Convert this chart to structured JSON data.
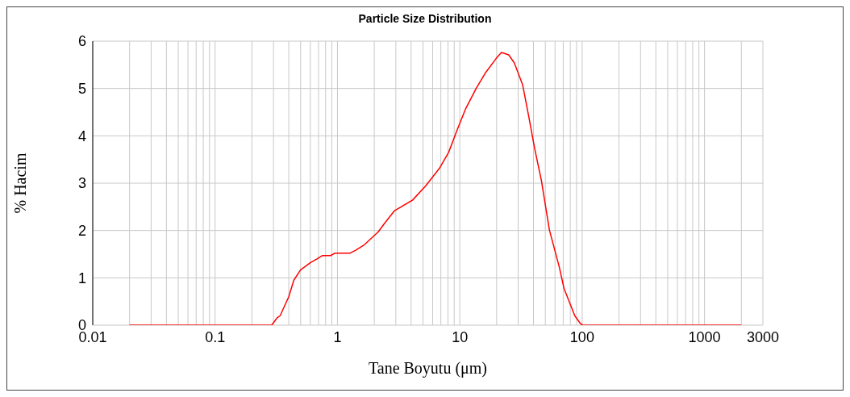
{
  "chart_data": {
    "type": "line",
    "title": "Particle Size Distribution",
    "xlabel": "Tane Boyutu (μm)",
    "ylabel": "% Hacim",
    "log": "x",
    "grid": true,
    "legend": false,
    "marker": "none",
    "line_style": "solid",
    "xlim": [
      0.01,
      3000
    ],
    "xticks": [
      0.01,
      {
        "value": 0.02,
        "label": null
      },
      {
        "value": 0.03,
        "label": null
      },
      {
        "value": 0.04,
        "label": null
      },
      {
        "value": 0.05,
        "label": null
      },
      {
        "value": 0.06,
        "label": null
      },
      {
        "value": 0.07,
        "label": null
      },
      {
        "value": 0.08,
        "label": null
      },
      {
        "value": 0.09,
        "label": null
      },
      0.1,
      {
        "value": 0.2,
        "label": null
      },
      {
        "value": 0.3,
        "label": null
      },
      {
        "value": 0.4,
        "label": null
      },
      {
        "value": 0.5,
        "label": null
      },
      {
        "value": 0.6,
        "label": null
      },
      {
        "value": 0.7,
        "label": null
      },
      {
        "value": 0.8,
        "label": null
      },
      {
        "value": 0.9,
        "label": null
      },
      1,
      {
        "value": 2,
        "label": null
      },
      {
        "value": 3,
        "label": null
      },
      {
        "value": 4,
        "label": null
      },
      {
        "value": 5,
        "label": null
      },
      {
        "value": 6,
        "label": null
      },
      {
        "value": 7,
        "label": null
      },
      {
        "value": 8,
        "label": null
      },
      {
        "value": 9,
        "label": null
      },
      10,
      {
        "value": 20,
        "label": null
      },
      {
        "value": 30,
        "label": null
      },
      {
        "value": 40,
        "label": null
      },
      {
        "value": 50,
        "label": null
      },
      {
        "value": 60,
        "label": null
      },
      {
        "value": 70,
        "label": null
      },
      {
        "value": 80,
        "label": null
      },
      {
        "value": 90,
        "label": null
      },
      100,
      {
        "value": 200,
        "label": null
      },
      {
        "value": 300,
        "label": null
      },
      {
        "value": 400,
        "label": null
      },
      {
        "value": 500,
        "label": null
      },
      {
        "value": 600,
        "label": null
      },
      {
        "value": 700,
        "label": null
      },
      {
        "value": 800,
        "label": null
      },
      {
        "value": 900,
        "label": null
      },
      1000,
      {
        "value": 2000,
        "label": null
      },
      3000
    ],
    "ylim": [
      0,
      6
    ],
    "yticks": [
      0,
      1,
      2,
      3,
      4,
      5,
      6
    ],
    "series": [
      {
        "color": "#ff0000",
        "x": [
          0.02,
          0.1,
          0.29,
          0.32,
          0.34,
          0.4,
          0.44,
          0.5,
          0.6,
          0.68,
          0.75,
          0.88,
          0.95,
          1.26,
          1.4,
          1.66,
          1.9,
          2.15,
          2.44,
          2.93,
          4.1,
          5.25,
          6.8,
          8.1,
          9.6,
          11.2,
          13.6,
          16.3,
          19.9,
          21.9,
          25.1,
          27.9,
          32.6,
          36.6,
          40.9,
          46.4,
          54,
          65,
          71,
          80,
          87,
          97,
          101,
          1000,
          2000
        ],
        "values": [
          0,
          0,
          0,
          0.15,
          0.2,
          0.6,
          0.95,
          1.17,
          1.32,
          1.4,
          1.47,
          1.47,
          1.52,
          1.52,
          1.58,
          1.7,
          1.84,
          1.97,
          2.16,
          2.42,
          2.64,
          2.94,
          3.31,
          3.65,
          4.15,
          4.58,
          5.0,
          5.34,
          5.64,
          5.76,
          5.71,
          5.54,
          5.08,
          4.41,
          3.73,
          3.06,
          2.01,
          1.23,
          0.78,
          0.44,
          0.2,
          0.03,
          0,
          0,
          0
        ]
      }
    ]
  }
}
